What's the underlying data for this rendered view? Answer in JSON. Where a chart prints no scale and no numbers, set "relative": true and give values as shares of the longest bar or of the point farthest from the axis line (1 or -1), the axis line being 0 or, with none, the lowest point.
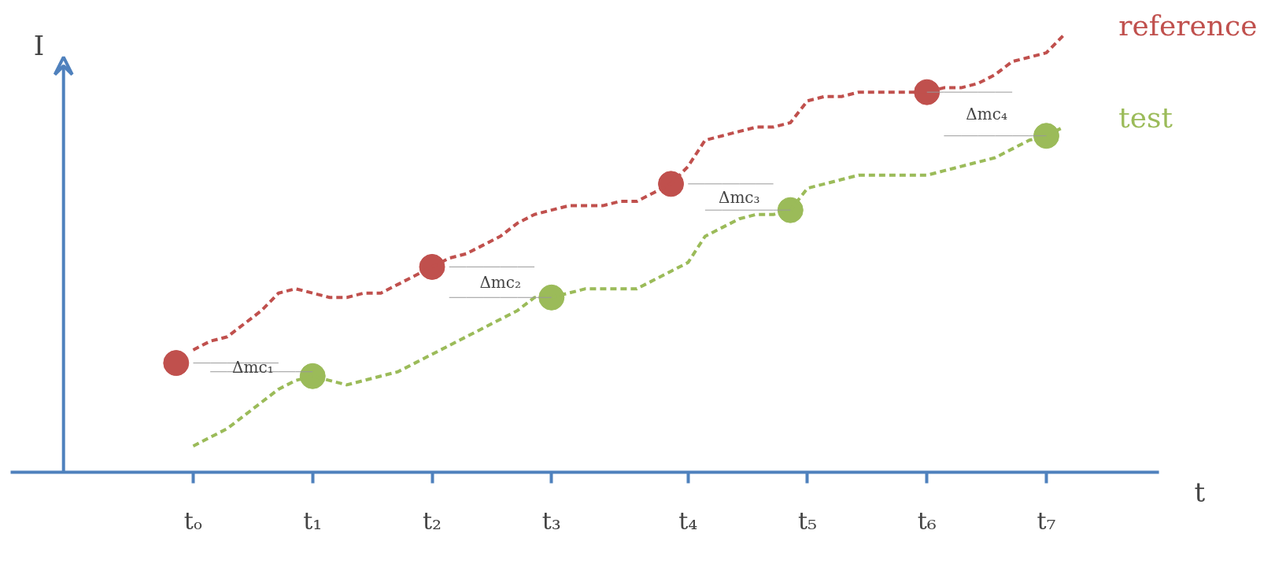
{
  "chart_data": {
    "type": "line",
    "relative": true,
    "xlabel": "t",
    "ylabel": "I",
    "categories": [
      null,
      "tₒ",
      null,
      null,
      null,
      null,
      null,
      null,
      "t₁",
      null,
      null,
      null,
      null,
      null,
      null,
      "t₂",
      null,
      null,
      null,
      null,
      null,
      null,
      "t₃",
      null,
      null,
      null,
      null,
      null,
      null,
      null,
      "t₄",
      null,
      null,
      null,
      null,
      null,
      null,
      "t₅",
      null,
      null,
      null,
      null,
      null,
      null,
      "t₆",
      null,
      null,
      null,
      null,
      null,
      null,
      "t₇",
      null
    ],
    "grid": false,
    "legend": false,
    "tick_labels": "x",
    "series": [
      {
        "name": "reference",
        "color": "#c0504d",
        "line_style": "dashed",
        "values": [
          null,
          0.28,
          0.3,
          0.31,
          0.34,
          0.37,
          0.41,
          0.42,
          0.41,
          0.4,
          0.4,
          0.41,
          0.41,
          0.43,
          0.45,
          0.47,
          0.49,
          0.5,
          0.52,
          0.54,
          0.57,
          0.59,
          0.6,
          0.61,
          0.61,
          0.61,
          0.62,
          0.62,
          0.64,
          0.66,
          0.7,
          0.76,
          0.77,
          0.78,
          0.79,
          0.79,
          0.8,
          0.85,
          0.86,
          0.86,
          0.87,
          0.87,
          0.87,
          0.87,
          0.87,
          0.88,
          0.88,
          0.89,
          0.91,
          0.94,
          0.95,
          0.96,
          1
        ]
      },
      {
        "name": "test",
        "color": "#9bbb59",
        "line_style": "dashed",
        "values": [
          null,
          0.06,
          0.08,
          0.1,
          0.13,
          0.16,
          0.19,
          0.21,
          0.22,
          0.21,
          0.2,
          0.21,
          0.22,
          0.23,
          0.25,
          0.27,
          0.29,
          0.31,
          0.33,
          0.35,
          0.37,
          0.4,
          0.4,
          0.41,
          0.42,
          0.42,
          0.42,
          0.42,
          0.44,
          0.46,
          0.48,
          0.54,
          0.56,
          0.58,
          0.59,
          0.59,
          0.6,
          0.65,
          0.66,
          0.67,
          0.68,
          0.68,
          0.68,
          0.68,
          0.68,
          0.69,
          0.7,
          0.71,
          0.72,
          0.74,
          0.76,
          0.77,
          0.79
        ]
      },
      {
        "type": "scatter",
        "marker": "circle",
        "color": "#c0504d",
        "values": [
          0.25,
          null,
          null,
          null,
          null,
          null,
          null,
          null,
          null,
          null,
          null,
          null,
          null,
          null,
          null,
          0.47,
          null,
          null,
          null,
          null,
          null,
          null,
          null,
          null,
          null,
          null,
          null,
          null,
          null,
          0.66,
          null,
          null,
          null,
          null,
          null,
          null,
          null,
          null,
          null,
          null,
          null,
          null,
          null,
          null,
          0.87,
          null,
          null,
          null,
          null,
          null,
          null,
          null,
          null
        ]
      },
      {
        "type": "scatter",
        "marker": "circle",
        "color": "#9bbb59",
        "values": [
          null,
          null,
          null,
          null,
          null,
          null,
          null,
          null,
          0.22,
          null,
          null,
          null,
          null,
          null,
          null,
          null,
          null,
          null,
          null,
          null,
          null,
          null,
          0.4,
          null,
          null,
          null,
          null,
          null,
          null,
          null,
          null,
          null,
          null,
          null,
          null,
          null,
          0.6,
          null,
          null,
          null,
          null,
          null,
          null,
          null,
          null,
          null,
          null,
          null,
          null,
          null,
          null,
          0.77,
          null
        ]
      },
      {
        "type": "line",
        "color": "#999999",
        "line_style": "solid",
        "values": [
          null,
          0.25,
          0.25,
          0.25,
          0.25,
          0.25,
          0.25,
          null,
          null,
          null,
          null,
          null,
          null,
          null,
          null,
          null,
          0.47,
          0.47,
          0.47,
          0.47,
          0.47,
          0.47,
          null,
          null,
          null,
          null,
          null,
          null,
          null,
          null,
          0.66,
          0.66,
          0.66,
          0.66,
          0.66,
          0.66,
          null,
          null,
          null,
          null,
          null,
          null,
          null,
          null,
          0.87,
          0.87,
          0.87,
          0.87,
          0.87,
          0.87,
          null,
          null,
          null
        ]
      },
      {
        "type": "line",
        "color": "#999999",
        "line_style": "solid",
        "values": [
          null,
          null,
          0.23,
          0.23,
          0.23,
          0.23,
          0.23,
          0.23,
          0.23,
          null,
          null,
          null,
          null,
          null,
          null,
          null,
          0.4,
          0.4,
          0.4,
          0.4,
          0.4,
          0.4,
          0.4,
          null,
          null,
          null,
          null,
          null,
          null,
          null,
          null,
          0.6,
          0.6,
          0.6,
          0.6,
          0.6,
          0.6,
          null,
          null,
          null,
          null,
          null,
          null,
          null,
          null,
          0.77,
          0.77,
          0.77,
          0.77,
          0.77,
          0.77,
          0.77,
          null
        ]
      }
    ],
    "annotations": [
      "Δmc₁",
      "Δmc₂",
      "Δmc₃",
      "Δmc₄"
    ]
  }
}
